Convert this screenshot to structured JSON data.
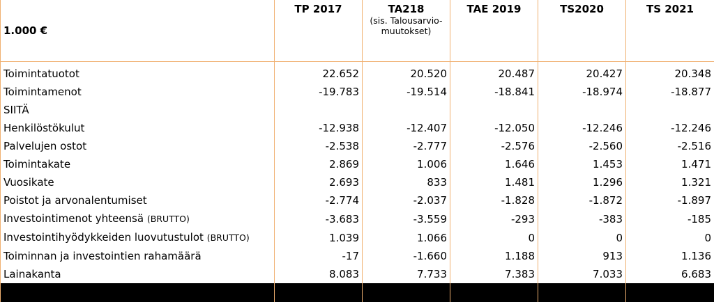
{
  "table": {
    "unit_label": "1.000 €",
    "columns": [
      {
        "title": "TP 2017",
        "note": ""
      },
      {
        "title": "TA218",
        "note": "(sis. Talousarvio-muutokset)"
      },
      {
        "title": "TAE 2019",
        "note": ""
      },
      {
        "title": "TS2020",
        "note": ""
      },
      {
        "title": "TS 2021",
        "note": ""
      }
    ],
    "rows": [
      {
        "label": "Toimintatuotot",
        "tag": "",
        "values": [
          "22.652",
          "20.520",
          "20.487",
          "20.427",
          "20.348"
        ]
      },
      {
        "label": "Toimintamenot",
        "tag": "",
        "values": [
          "-19.783",
          "-19.514",
          "-18.841",
          "-18.974",
          "-18.877"
        ]
      },
      {
        "label": "SIITÄ",
        "tag": "",
        "values": [
          "",
          "",
          "",
          "",
          ""
        ]
      },
      {
        "label": "Henkilöstökulut",
        "tag": "",
        "values": [
          "-12.938",
          "-12.407",
          "-12.050",
          "-12.246",
          "-12.246"
        ]
      },
      {
        "label": "Palvelujen ostot",
        "tag": "",
        "values": [
          "-2.538",
          "-2.777",
          "-2.576",
          "-2.560",
          "-2.516"
        ]
      },
      {
        "label": "Toimintakate",
        "tag": "",
        "values": [
          "2.869",
          "1.006",
          "1.646",
          "1.453",
          "1.471"
        ]
      },
      {
        "label": "Vuosikate",
        "tag": "",
        "values": [
          "2.693",
          "833",
          "1.481",
          "1.296",
          "1.321"
        ]
      },
      {
        "label": "Poistot ja arvonalentumiset",
        "tag": "",
        "values": [
          "-2.774",
          "-2.037",
          "-1.828",
          "-1.872",
          "-1.897"
        ]
      },
      {
        "label": "Investointimenot yhteensä",
        "tag": "(BRUTTO)",
        "values": [
          "-3.683",
          "-3.559",
          "-293",
          "-383",
          "-185"
        ]
      },
      {
        "label": "Investointihyödykkeiden luovutustulot",
        "tag": "(BRUTTO)",
        "values": [
          "1.039",
          "1.066",
          "0",
          "0",
          "0"
        ]
      },
      {
        "label": "Toiminnan ja investointien rahamäärä",
        "tag": "",
        "values": [
          "-17",
          "-1.660",
          "1.188",
          "913",
          "1.136"
        ]
      },
      {
        "label": "Lainakanta",
        "tag": "",
        "values": [
          "8.083",
          "7.733",
          "7.383",
          "7.033",
          "6.683"
        ]
      }
    ]
  },
  "colors": {
    "grid": "#f0b070",
    "footer_bar": "#000000"
  }
}
